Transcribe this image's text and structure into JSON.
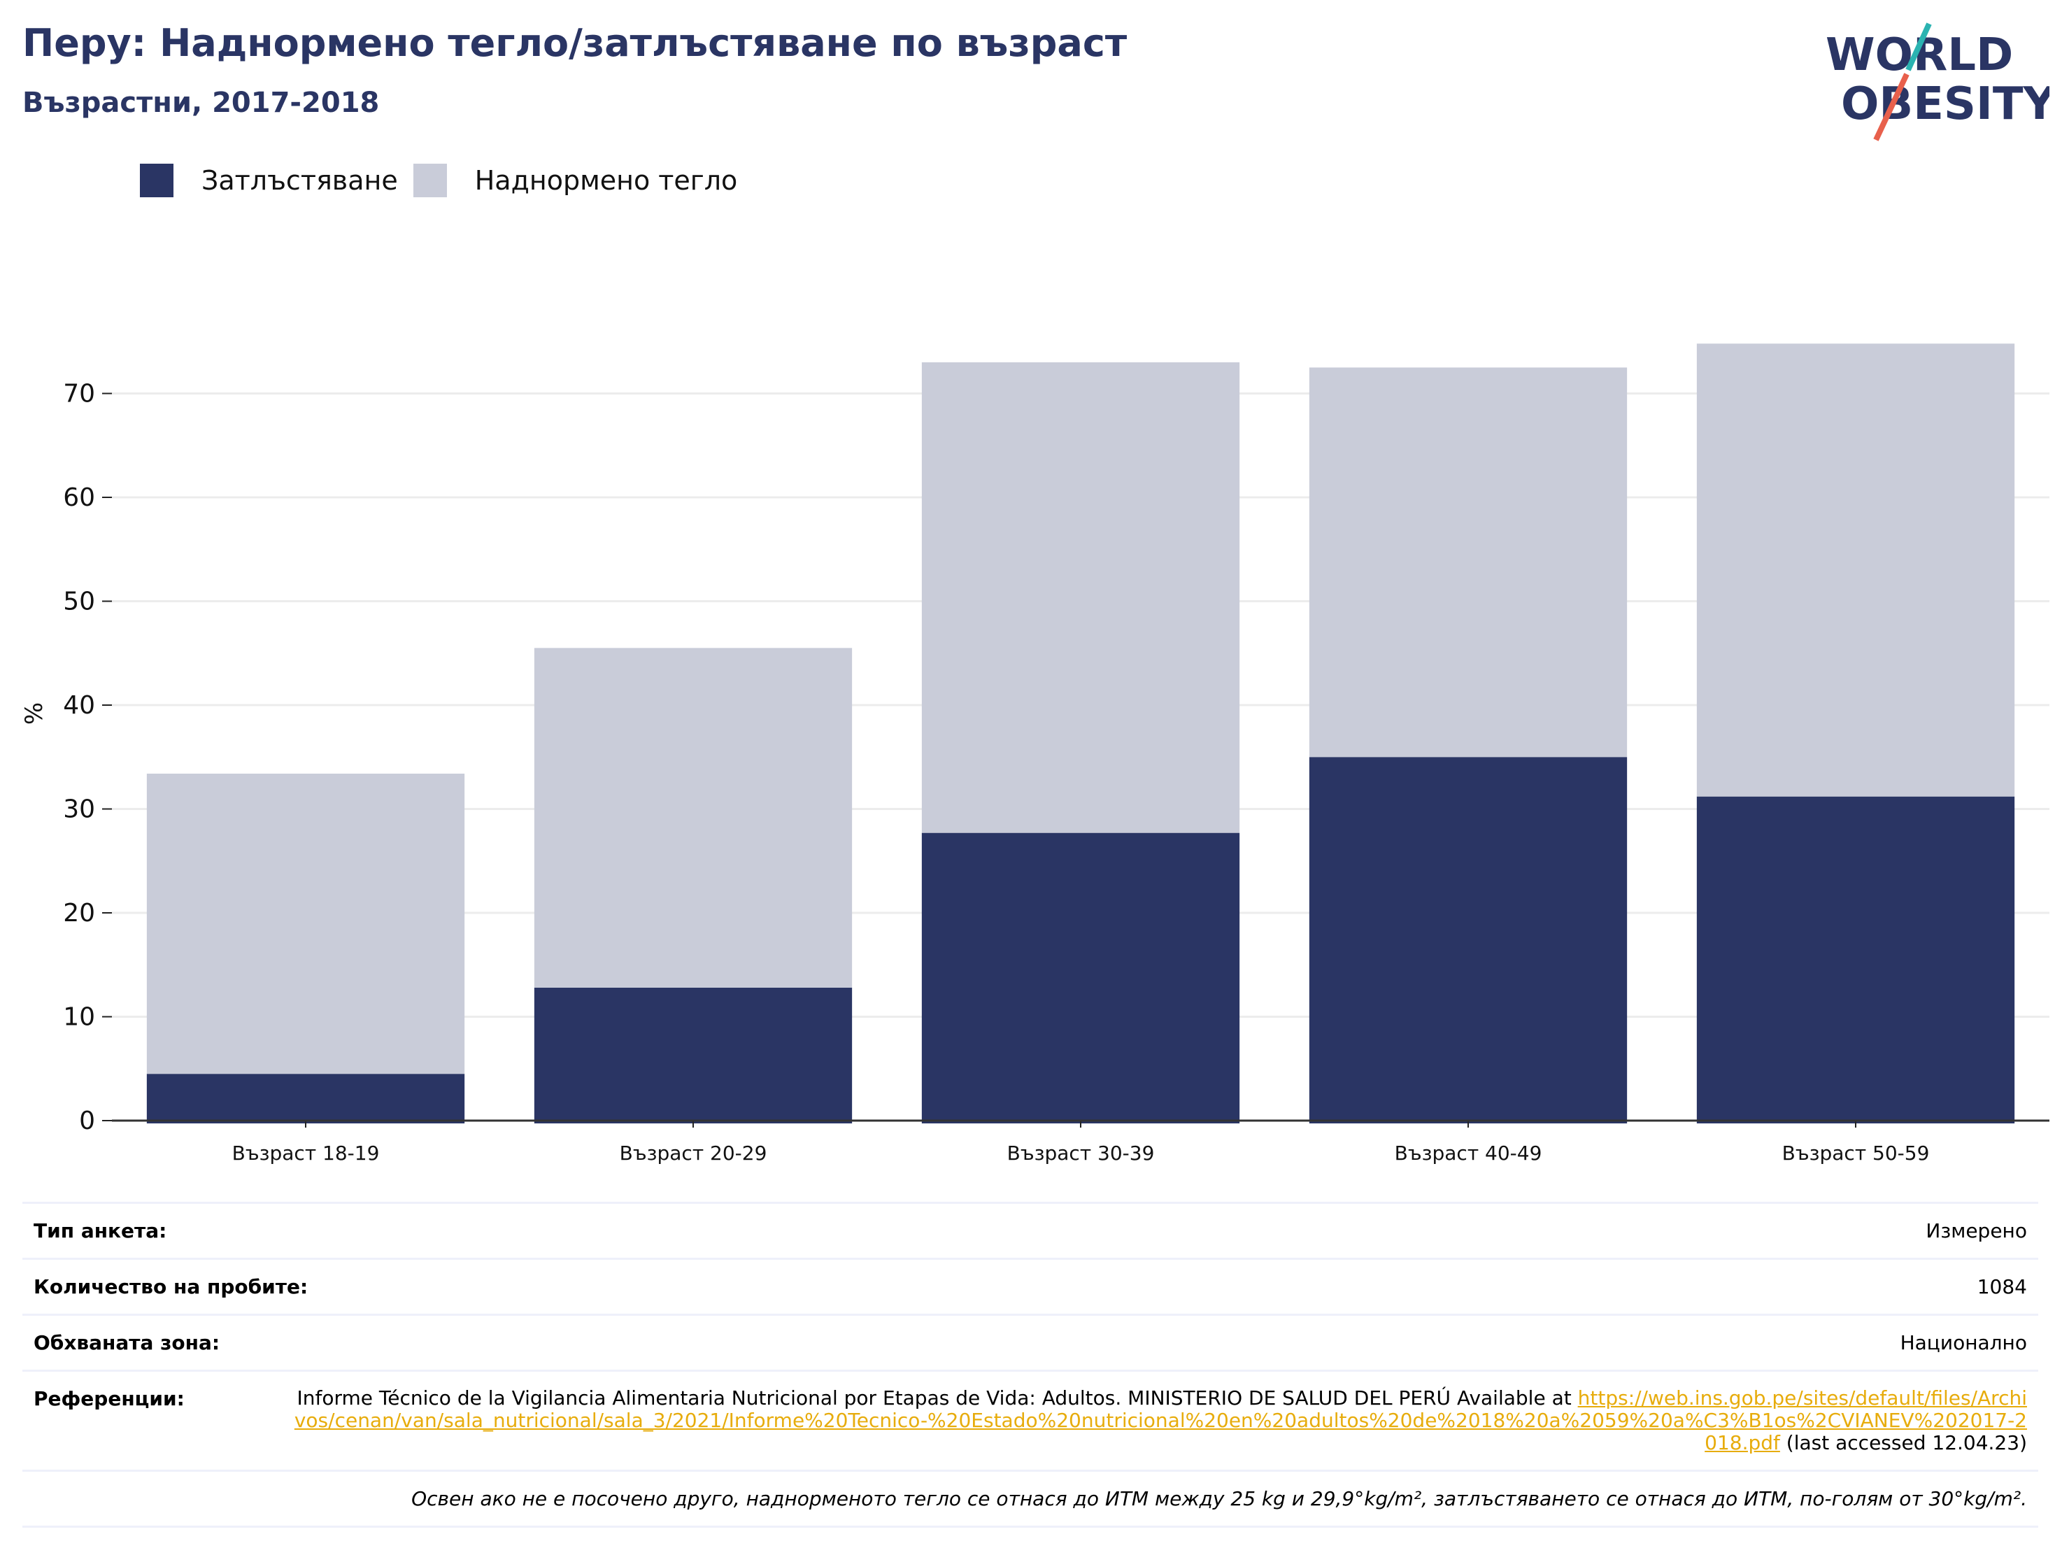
{
  "title": "Перу: Наднормено тегло/затлъстяване по възраст",
  "subtitle": "Възрастни, 2017-2018",
  "logo": {
    "line1": "WORLD",
    "line2": "OBESITY"
  },
  "colors": {
    "obesity": "#2a3564",
    "overweight": "#c9ccd9",
    "title": "#2a3564",
    "link": "#e7ac0c",
    "grid": "#ececec"
  },
  "chart_data": {
    "type": "bar",
    "stacked": true,
    "categories": [
      "Възраст 18-19",
      "Възраст 20-29",
      "Възраст 30-39",
      "Възраст 40-49",
      "Възраст 50-59"
    ],
    "series": [
      {
        "name": "Затлъстяване",
        "values": [
          4.5,
          12.8,
          27.7,
          35.0,
          31.2
        ]
      },
      {
        "name": "Наднормено тегло",
        "values": [
          28.9,
          32.7,
          45.3,
          37.5,
          43.6
        ]
      }
    ],
    "ylabel": "%",
    "ylim": [
      0,
      80
    ],
    "yticks": [
      0,
      10,
      20,
      30,
      40,
      50,
      60,
      70
    ],
    "grid": true,
    "legend_position": "top-left"
  },
  "info": {
    "survey_type": {
      "label": "Тип анкета:",
      "value": "Измерено"
    },
    "sample_size": {
      "label": "Количество на пробите:",
      "value": "1084"
    },
    "area": {
      "label": "Обхваната зона:",
      "value": "Национално"
    },
    "references": {
      "label": "Референции:",
      "text": "Informe Técnico de la Vigilancia Alimentaria Nutricional por Etapas de Vida: Adultos. MINISTERIO DE SALUD DEL PERÚ Available at",
      "link": "https://web.ins.gob.pe/sites/default/files/Archivos/cenan/van/sala_nutricional/sala_3/2021/Informe%20Tecnico-%20Estado%20nutricional%20en%20adultos%20de%2018%20a%2059%20a%C3%B1os%2CVIANEV%202017-2018.pdf",
      "accessed": "(last accessed 12.04.23)"
    },
    "note": "Освен ако не е посочено друго, наднорменото тегло се отнася до ИТМ между 25 kg и 29,9°kg/m², затлъстяването се отнася до ИТМ, по-голям от 30°kg/m²."
  }
}
